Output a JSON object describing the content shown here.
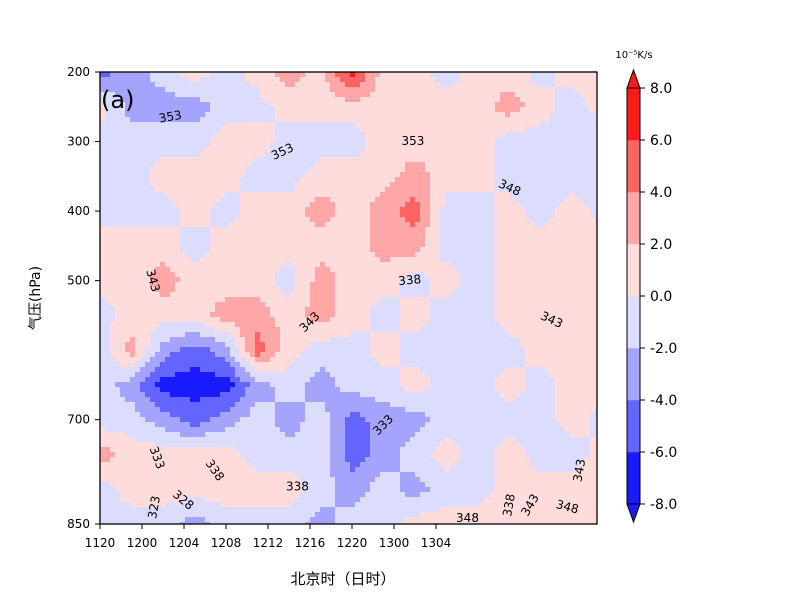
{
  "chart_data": {
    "type": "heatmap",
    "subtype": "filled-contour",
    "panel_label": "(a)",
    "xlabel": "北京时（日时）",
    "ylabel": "气压(hPa)",
    "x_ticks": [
      "1120",
      "1200",
      "1204",
      "1208",
      "1212",
      "1216",
      "1220",
      "1300",
      "1304"
    ],
    "x_tick_hours": [
      0,
      4,
      8,
      12,
      16,
      20,
      24,
      28,
      32
    ],
    "x_hour_range": [
      0,
      47.3
    ],
    "y_ticks": [
      200,
      300,
      400,
      500,
      700,
      850
    ],
    "y_range": [
      200,
      850
    ],
    "y_scale": "linear",
    "grid": false,
    "colorbar": {
      "unit": "10⁻⁵K/s",
      "levels": [
        -8,
        -6,
        -4,
        -2,
        0,
        2,
        4,
        6,
        8
      ],
      "tick_labels": [
        "-8.0",
        "-6.0",
        "-4.0",
        "-2.0",
        "0.0",
        "2.0",
        "4.0",
        "6.0",
        "8.0"
      ],
      "colors": [
        "#1a1aff",
        "#6464ff",
        "#a4a4ff",
        "#dcdcff",
        "#ffdcdc",
        "#ffa6a6",
        "#ff6464",
        "#ff1a1a"
      ],
      "extend": "both",
      "placement": "right"
    },
    "grid_hours": [
      0,
      3,
      6,
      9,
      12,
      15,
      18,
      21,
      24,
      27,
      30,
      33,
      36,
      39,
      42,
      45,
      48
    ],
    "grid_pressure": [
      200,
      250,
      300,
      350,
      400,
      450,
      500,
      550,
      600,
      650,
      700,
      750,
      800,
      850
    ],
    "values": [
      [
        -5,
        -3,
        -1,
        1,
        -1,
        1,
        3,
        1,
        7,
        1,
        1,
        -1,
        1,
        1,
        -1,
        1,
        1
      ],
      [
        1,
        -3,
        -3,
        -3,
        -1,
        -1,
        1,
        1,
        1,
        1,
        1,
        1,
        1,
        3,
        1,
        -1,
        1
      ],
      [
        -1,
        -1,
        -1,
        -1,
        1,
        1,
        -1,
        -1,
        -1,
        1,
        1,
        1,
        1,
        -1,
        -1,
        -1,
        -1
      ],
      [
        -1,
        -1,
        1,
        1,
        1,
        -1,
        -1,
        1,
        1,
        1,
        3,
        1,
        1,
        -1,
        -1,
        -1,
        -1
      ],
      [
        -1,
        -1,
        -1,
        1,
        -1,
        1,
        1,
        3,
        1,
        3,
        5,
        -1,
        -1,
        1,
        -1,
        1,
        -1
      ],
      [
        1,
        1,
        1,
        -1,
        1,
        1,
        1,
        1,
        1,
        3,
        3,
        -1,
        -1,
        1,
        1,
        1,
        1
      ],
      [
        1,
        1,
        3,
        1,
        1,
        1,
        -1,
        3,
        1,
        1,
        -1,
        1,
        -1,
        1,
        1,
        1,
        1
      ],
      [
        -1,
        1,
        1,
        1,
        3,
        3,
        1,
        3,
        1,
        -1,
        1,
        -1,
        -1,
        1,
        1,
        1,
        1
      ],
      [
        -1,
        3,
        -3,
        -5,
        -3,
        5,
        1,
        -1,
        -1,
        1,
        -1,
        -1,
        -1,
        -1,
        1,
        1,
        1
      ],
      [
        -1,
        -3,
        -7,
        -7,
        -7,
        -3,
        -1,
        -3,
        -1,
        -1,
        1,
        -1,
        -1,
        1,
        -1,
        1,
        1
      ],
      [
        -1,
        -1,
        -3,
        -5,
        -3,
        -1,
        -3,
        -1,
        -5,
        -3,
        -3,
        -1,
        -1,
        -1,
        -1,
        1,
        -1
      ],
      [
        3,
        1,
        1,
        1,
        1,
        -1,
        -1,
        -1,
        -5,
        -3,
        -1,
        1,
        -1,
        1,
        -1,
        -1,
        1
      ],
      [
        -1,
        1,
        1,
        1,
        1,
        1,
        1,
        -1,
        -3,
        -1,
        -3,
        -1,
        -1,
        1,
        1,
        1,
        1
      ],
      [
        -1,
        -1,
        -1,
        -3,
        -1,
        -1,
        -1,
        -3,
        -1,
        -1,
        1,
        1,
        1,
        1,
        1,
        1,
        1
      ]
    ],
    "contour_labels": [
      {
        "text": "353",
        "hour": 6.7,
        "p": 265,
        "rot": -10
      },
      {
        "text": "353",
        "hour": 17.4,
        "p": 315,
        "rot": -25
      },
      {
        "text": "353",
        "hour": 29.8,
        "p": 300,
        "rot": 0
      },
      {
        "text": "348",
        "hour": 39,
        "p": 367,
        "rot": 25
      },
      {
        "text": "343",
        "hour": 5,
        "p": 500,
        "rot": 75
      },
      {
        "text": "338",
        "hour": 29.5,
        "p": 500,
        "rot": -5
      },
      {
        "text": "343",
        "hour": 20,
        "p": 560,
        "rot": -45
      },
      {
        "text": "343",
        "hour": 43,
        "p": 557,
        "rot": 25
      },
      {
        "text": "333",
        "hour": 5.4,
        "p": 755,
        "rot": 70
      },
      {
        "text": "338",
        "hour": 10.9,
        "p": 773,
        "rot": 55
      },
      {
        "text": "333",
        "hour": 27,
        "p": 708,
        "rot": -45
      },
      {
        "text": "338",
        "hour": 18.8,
        "p": 797,
        "rot": 0
      },
      {
        "text": "328",
        "hour": 7.9,
        "p": 816,
        "rot": 40
      },
      {
        "text": "323",
        "hour": 5.2,
        "p": 826,
        "rot": -80
      },
      {
        "text": "348",
        "hour": 35,
        "p": 842,
        "rot": 0
      },
      {
        "text": "338",
        "hour": 39,
        "p": 823,
        "rot": -80
      },
      {
        "text": "343",
        "hour": 41,
        "p": 823,
        "rot": -60
      },
      {
        "text": "348",
        "hour": 44.5,
        "p": 826,
        "rot": 15
      },
      {
        "text": "343",
        "hour": 45.7,
        "p": 773,
        "rot": -80
      }
    ]
  }
}
